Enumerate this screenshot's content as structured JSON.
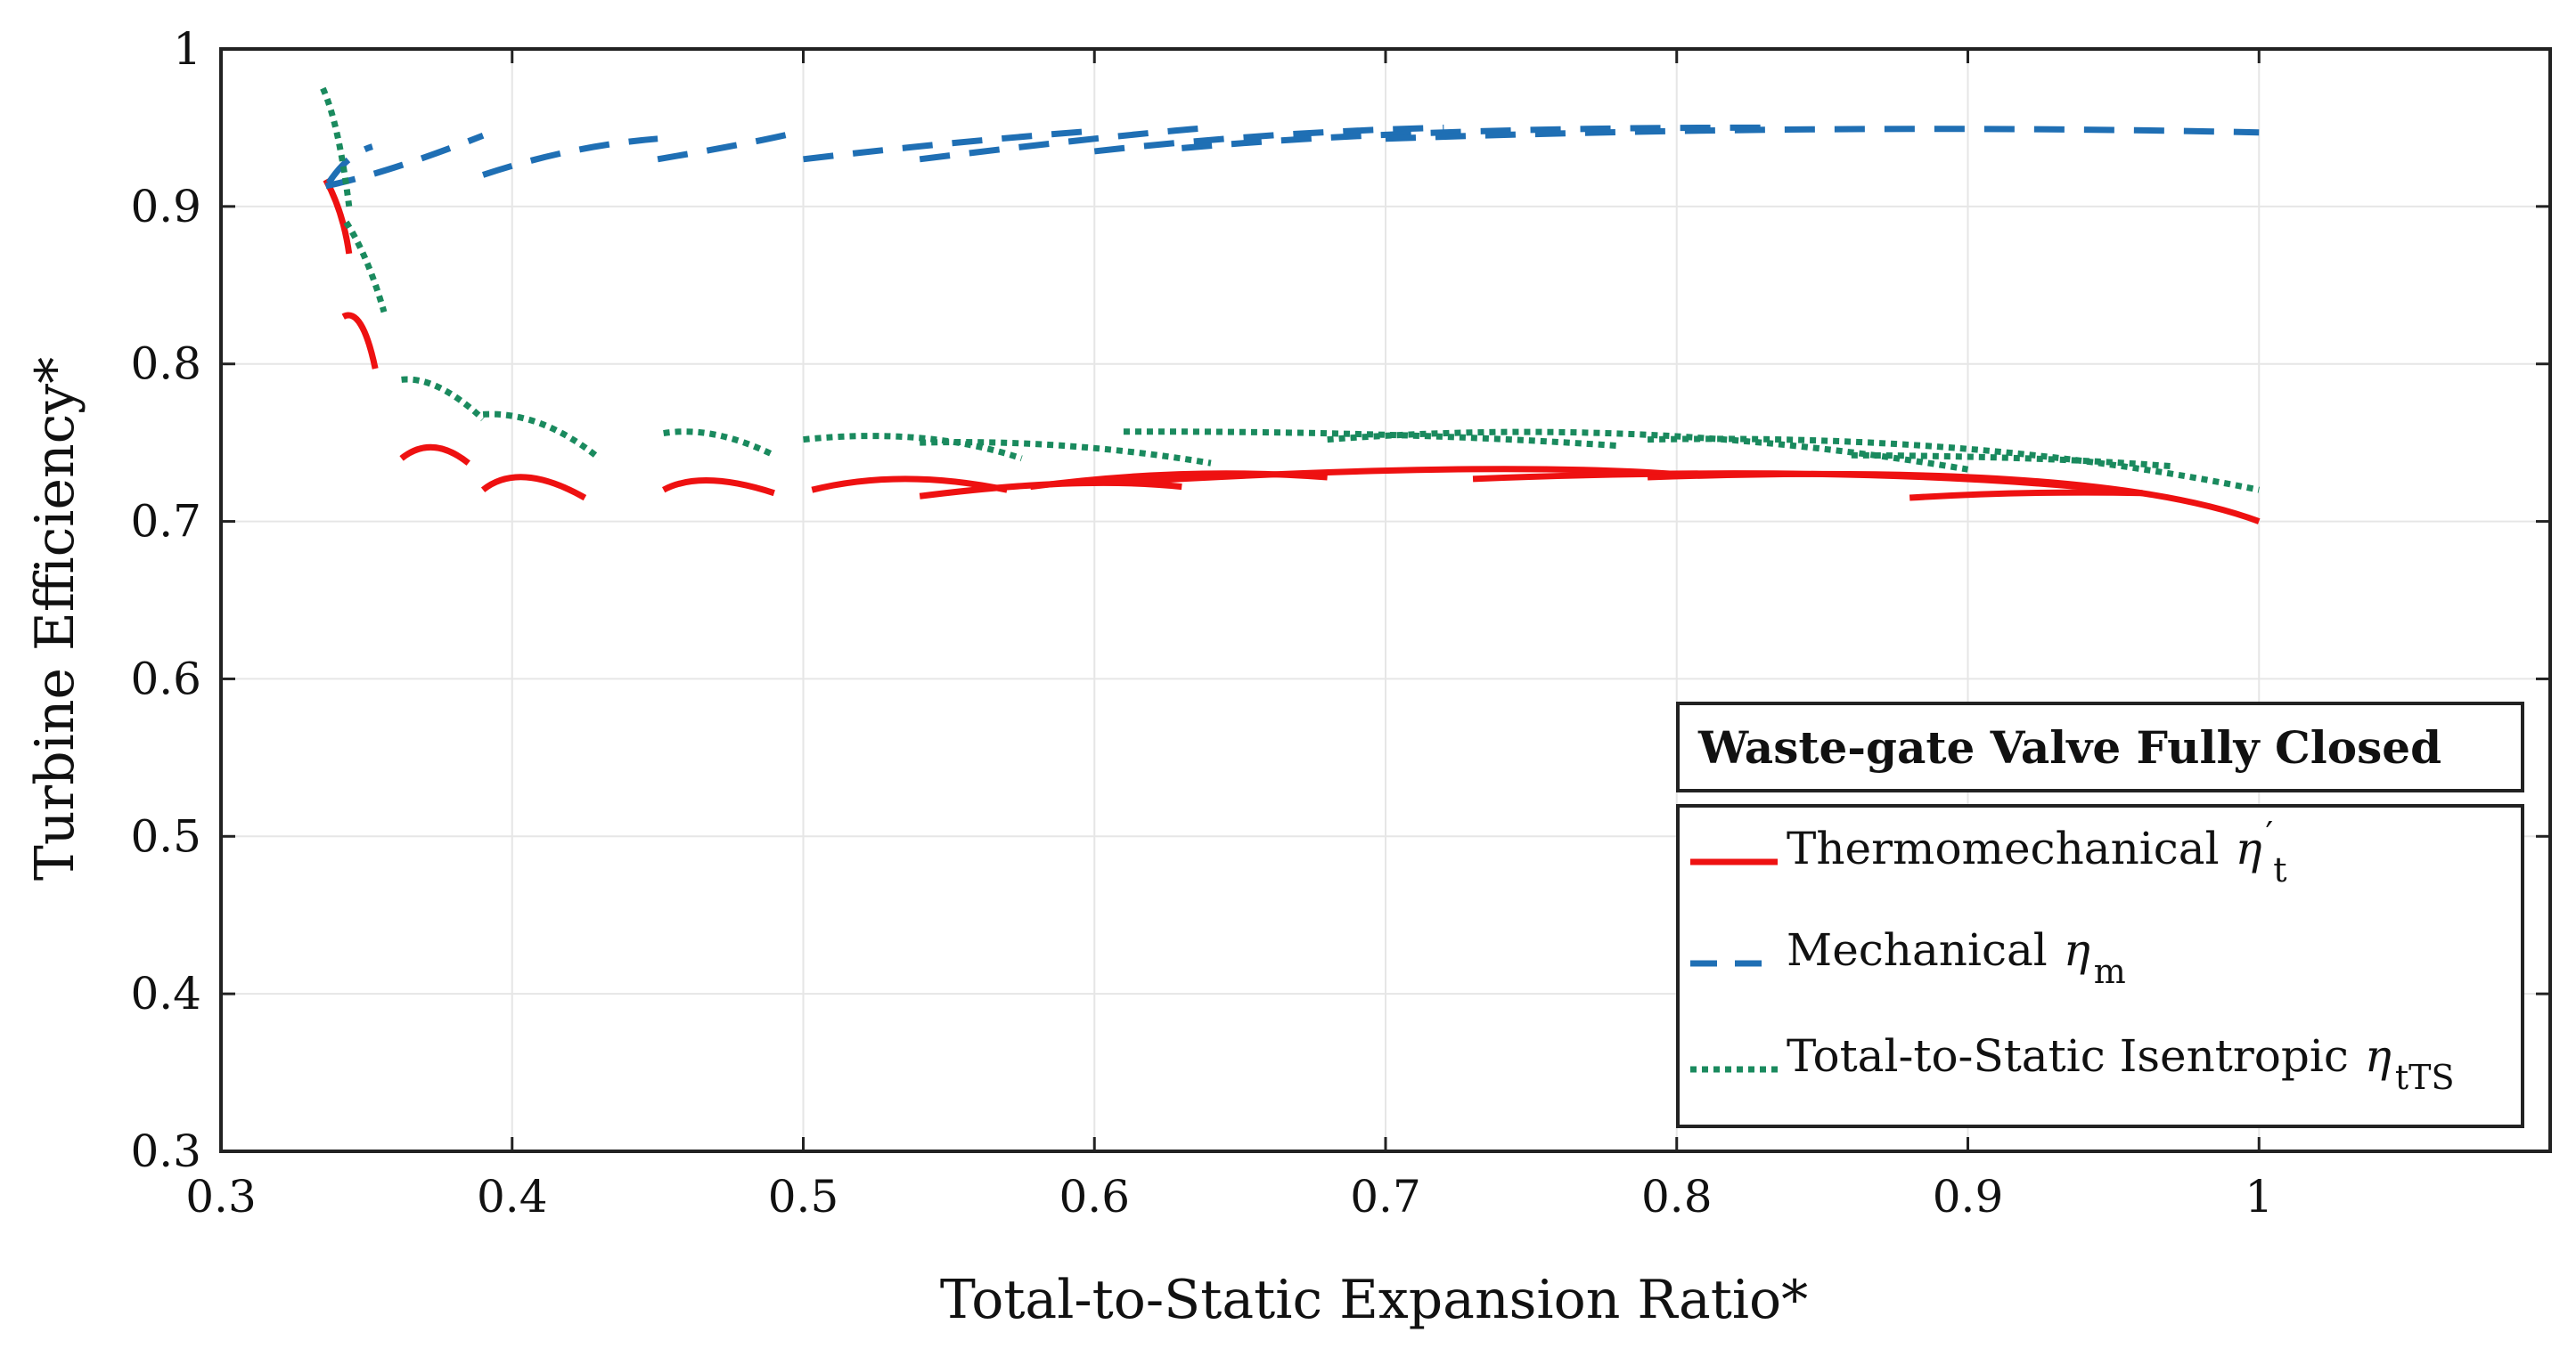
{
  "chart_data": {
    "type": "line",
    "title": "",
    "xlabel": "Total-to-Static Expansion Ratio*",
    "ylabel": "Turbine Efficiency*",
    "xlim": [
      0.3,
      1.1
    ],
    "ylim": [
      0.3,
      1.0
    ],
    "xticks": [
      0.3,
      0.4,
      0.5,
      0.6,
      0.7,
      0.8,
      0.9,
      1.0
    ],
    "xtick_labels": [
      "0.3",
      "0.4",
      "0.5",
      "0.6",
      "0.7",
      "0.8",
      "0.9",
      "1"
    ],
    "yticks": [
      0.3,
      0.4,
      0.5,
      0.6,
      0.7,
      0.8,
      0.9,
      1.0
    ],
    "ytick_labels": [
      "0.3",
      "0.4",
      "0.5",
      "0.6",
      "0.7",
      "0.8",
      "0.9",
      "1"
    ],
    "grid": true,
    "legend_position": "bottom-right",
    "legend_title": "Waste-gate Valve Fully Closed",
    "series": [
      {
        "name": "Thermomechanical η′t",
        "label": "Thermomechanical",
        "symbol": "η",
        "prime": "′",
        "subscript": "t",
        "color": "#ee1111",
        "style": "solid",
        "segments": [
          [
            [
              0.336,
              0.917
            ],
            [
              0.341,
              0.895
            ],
            [
              0.344,
              0.87
            ]
          ],
          [
            [
              0.342,
              0.83
            ],
            [
              0.348,
              0.825
            ],
            [
              0.353,
              0.797
            ]
          ],
          [
            [
              0.362,
              0.74
            ],
            [
              0.373,
              0.747
            ],
            [
              0.385,
              0.737
            ]
          ],
          [
            [
              0.39,
              0.72
            ],
            [
              0.405,
              0.728
            ],
            [
              0.425,
              0.715
            ]
          ],
          [
            [
              0.452,
              0.72
            ],
            [
              0.468,
              0.726
            ],
            [
              0.49,
              0.718
            ]
          ],
          [
            [
              0.503,
              0.72
            ],
            [
              0.535,
              0.727
            ],
            [
              0.57,
              0.72
            ]
          ],
          [
            [
              0.54,
              0.716
            ],
            [
              0.59,
              0.724
            ],
            [
              0.63,
              0.722
            ]
          ],
          [
            [
              0.578,
              0.722
            ],
            [
              0.63,
              0.73
            ],
            [
              0.68,
              0.728
            ]
          ],
          [
            [
              0.61,
              0.725
            ],
            [
              0.72,
              0.733
            ],
            [
              0.8,
              0.73
            ]
          ],
          [
            [
              0.73,
              0.727
            ],
            [
              0.85,
              0.73
            ],
            [
              0.95,
              0.72
            ]
          ],
          [
            [
              0.79,
              0.728
            ],
            [
              0.92,
              0.726
            ],
            [
              1.0,
              0.7
            ]
          ],
          [
            [
              0.88,
              0.715
            ],
            [
              0.92,
              0.718
            ],
            [
              0.96,
              0.718
            ]
          ]
        ]
      },
      {
        "name": "Mechanical ηm",
        "label": "Mechanical",
        "symbol": "η",
        "prime": "",
        "subscript": "m",
        "color": "#1f6fb4",
        "style": "dashed",
        "segments": [
          [
            [
              0.337,
              0.915
            ],
            [
              0.344,
              0.93
            ],
            [
              0.352,
              0.938
            ]
          ],
          [
            [
              0.336,
              0.913
            ],
            [
              0.36,
              0.925
            ],
            [
              0.39,
              0.945
            ]
          ],
          [
            [
              0.39,
              0.92
            ],
            [
              0.42,
              0.935
            ],
            [
              0.45,
              0.943
            ]
          ],
          [
            [
              0.45,
              0.93
            ],
            [
              0.48,
              0.94
            ],
            [
              0.5,
              0.948
            ]
          ],
          [
            [
              0.5,
              0.93
            ],
            [
              0.55,
              0.94
            ],
            [
              0.6,
              0.948
            ]
          ],
          [
            [
              0.54,
              0.93
            ],
            [
              0.6,
              0.943
            ],
            [
              0.64,
              0.95
            ]
          ],
          [
            [
              0.6,
              0.935
            ],
            [
              0.66,
              0.945
            ],
            [
              0.72,
              0.95
            ]
          ],
          [
            [
              0.63,
              0.937
            ],
            [
              0.72,
              0.947
            ],
            [
              0.83,
              0.95
            ]
          ],
          [
            [
              0.7,
              0.943
            ],
            [
              0.85,
              0.949
            ],
            [
              1.0,
              0.947
            ]
          ]
        ]
      },
      {
        "name": "Total-to-Static Isentropic ηtTS",
        "label": "Total-to-Static Isentropic",
        "symbol": "η",
        "prime": "",
        "subscript": "tTS",
        "color": "#1a8a5e",
        "style": "dotted",
        "segments": [
          [
            [
              0.335,
              0.975
            ],
            [
              0.34,
              0.945
            ],
            [
              0.344,
              0.9
            ]
          ],
          [
            [
              0.343,
              0.89
            ],
            [
              0.35,
              0.865
            ],
            [
              0.356,
              0.833
            ]
          ],
          [
            [
              0.362,
              0.79
            ],
            [
              0.375,
              0.785
            ],
            [
              0.39,
              0.765
            ]
          ],
          [
            [
              0.39,
              0.768
            ],
            [
              0.41,
              0.762
            ],
            [
              0.43,
              0.74
            ]
          ],
          [
            [
              0.452,
              0.756
            ],
            [
              0.47,
              0.755
            ],
            [
              0.49,
              0.742
            ]
          ],
          [
            [
              0.5,
              0.752
            ],
            [
              0.54,
              0.753
            ],
            [
              0.575,
              0.74
            ]
          ],
          [
            [
              0.54,
              0.75
            ],
            [
              0.59,
              0.748
            ],
            [
              0.64,
              0.737
            ]
          ],
          [
            [
              0.61,
              0.757
            ],
            [
              0.7,
              0.755
            ],
            [
              0.78,
              0.748
            ]
          ],
          [
            [
              0.68,
              0.752
            ],
            [
              0.79,
              0.755
            ],
            [
              0.9,
              0.733
            ]
          ],
          [
            [
              0.79,
              0.752
            ],
            [
              0.9,
              0.746
            ],
            [
              1.0,
              0.72
            ]
          ],
          [
            [
              0.86,
              0.742
            ],
            [
              0.92,
              0.74
            ],
            [
              0.97,
              0.735
            ]
          ]
        ]
      }
    ]
  }
}
